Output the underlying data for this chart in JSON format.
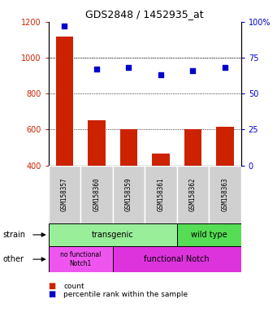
{
  "title": "GDS2848 / 1452935_at",
  "samples": [
    "GSM158357",
    "GSM158360",
    "GSM158359",
    "GSM158361",
    "GSM158362",
    "GSM158363"
  ],
  "counts": [
    1120,
    650,
    600,
    465,
    600,
    615
  ],
  "percentiles": [
    97,
    67,
    68,
    63,
    66,
    68
  ],
  "ylim_left": [
    400,
    1200
  ],
  "ylim_right": [
    0,
    100
  ],
  "yticks_left": [
    400,
    600,
    800,
    1000,
    1200
  ],
  "yticks_right": [
    0,
    25,
    50,
    75,
    100
  ],
  "bar_color": "#cc2200",
  "dot_color": "#0000cc",
  "bar_width": 0.55,
  "color_transgenic": "#99ee99",
  "color_wildtype": "#55dd55",
  "color_nofunc": "#ee55ee",
  "color_func": "#dd33dd",
  "color_sample_box": "#d0d0d0",
  "strain_label": "strain",
  "other_label": "other",
  "strain_trans_text": "transgenic",
  "strain_wt_text": "wild type",
  "other_nofunc_text": "no functional\nNotch1",
  "other_func_text": "functional Notch",
  "legend_count": "count",
  "legend_pct": "percentile rank within the sample",
  "tick_color_left": "#cc2200",
  "tick_color_right": "#0000cc",
  "n_transgenic": 4,
  "n_wildtype": 2,
  "n_nofunc": 2,
  "n_func": 4
}
